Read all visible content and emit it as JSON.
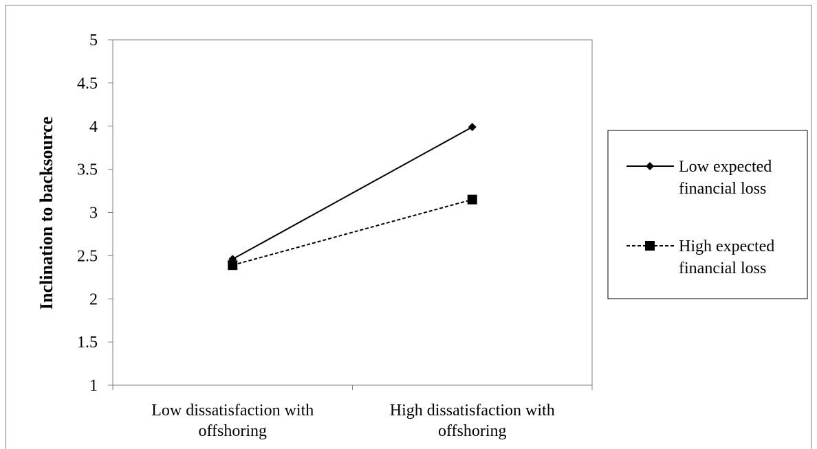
{
  "chart_data": {
    "type": "line",
    "title": "",
    "xlabel": "",
    "ylabel": "Inclination to backsource",
    "ylim": [
      1,
      5
    ],
    "yticks": [
      1,
      1.5,
      2,
      2.5,
      3,
      3.5,
      4,
      4.5,
      5
    ],
    "ytick_labels": [
      "1",
      "1.5",
      "2",
      "2.5",
      "3",
      "3.5",
      "4",
      "4.5",
      "5"
    ],
    "categories": [
      [
        "Low dissatisfaction with",
        "offshoring"
      ],
      [
        "High dissatisfaction with",
        "offshoring"
      ]
    ],
    "series": [
      {
        "name": [
          "Low expected",
          "financial loss"
        ],
        "values": [
          2.46,
          3.99
        ],
        "line_style": "solid",
        "marker": "diamond",
        "color": "#000000"
      },
      {
        "name": [
          "High expected",
          "financial loss"
        ],
        "values": [
          2.39,
          3.15
        ],
        "line_style": "dashed",
        "marker": "square",
        "color": "#000000"
      }
    ],
    "grid": false,
    "legend_position": "right"
  }
}
